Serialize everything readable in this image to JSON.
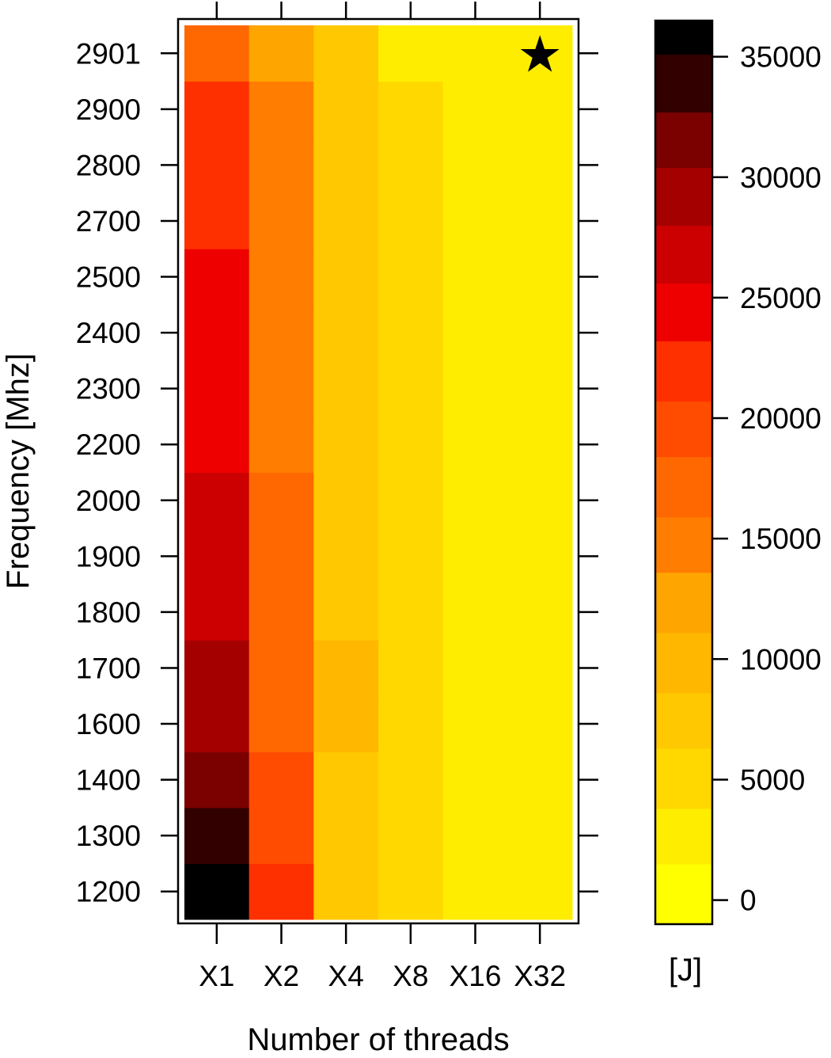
{
  "chart_data": {
    "type": "heatmap",
    "title": "",
    "xlabel": "Number of threads",
    "ylabel": "Frequency [Mhz]",
    "x_categories": [
      "X1",
      "X2",
      "X4",
      "X8",
      "X16",
      "X32"
    ],
    "y_categories": [
      "1200",
      "1300",
      "1400",
      "1600",
      "1700",
      "1800",
      "1900",
      "2000",
      "2200",
      "2300",
      "2400",
      "2500",
      "2700",
      "2800",
      "2900",
      "2901"
    ],
    "values": [
      [
        36000,
        21000,
        8500,
        5500,
        3200,
        1500
      ],
      [
        33500,
        19000,
        8500,
        5500,
        3200,
        1500
      ],
      [
        31500,
        18500,
        8500,
        5500,
        3200,
        1500
      ],
      [
        28500,
        17000,
        9000,
        5500,
        3200,
        1500
      ],
      [
        28500,
        17000,
        9000,
        5500,
        3200,
        1500
      ],
      [
        26000,
        16500,
        7500,
        5500,
        3200,
        1500
      ],
      [
        26000,
        16500,
        7500,
        5500,
        3200,
        1500
      ],
      [
        26000,
        16500,
        7500,
        5500,
        3200,
        1500
      ],
      [
        24000,
        15500,
        7500,
        5500,
        3200,
        1500
      ],
      [
        24000,
        15500,
        7500,
        5500,
        3200,
        1500
      ],
      [
        24000,
        15500,
        7500,
        5500,
        3200,
        1500
      ],
      [
        24000,
        15500,
        7500,
        5500,
        3200,
        1500
      ],
      [
        21000,
        15500,
        7500,
        5500,
        3200,
        1500
      ],
      [
        21000,
        15500,
        7500,
        5500,
        3200,
        1500
      ],
      [
        21000,
        15500,
        7500,
        5500,
        3200,
        1500
      ],
      [
        18000,
        11500,
        8500,
        3200,
        3200,
        2000
      ]
    ],
    "colorbar": {
      "label": "[J]",
      "ticks": [
        0,
        5000,
        10000,
        15000,
        20000,
        25000,
        30000,
        35000
      ],
      "range": [
        -1000,
        36500
      ],
      "bins": [
        {
          "lo": -1000,
          "hi": 1500,
          "color": "#ffff00"
        },
        {
          "lo": 1500,
          "hi": 3800,
          "color": "#ffed00"
        },
        {
          "lo": 3800,
          "hi": 6300,
          "color": "#ffd800"
        },
        {
          "lo": 6300,
          "hi": 8600,
          "color": "#ffc800"
        },
        {
          "lo": 8600,
          "hi": 11100,
          "color": "#ffb700"
        },
        {
          "lo": 11100,
          "hi": 13600,
          "color": "#ffa500"
        },
        {
          "lo": 13600,
          "hi": 15900,
          "color": "#ff7d00"
        },
        {
          "lo": 15900,
          "hi": 18400,
          "color": "#ff6700"
        },
        {
          "lo": 18400,
          "hi": 20700,
          "color": "#ff4c00"
        },
        {
          "lo": 20700,
          "hi": 23200,
          "color": "#ff3000"
        },
        {
          "lo": 23200,
          "hi": 25600,
          "color": "#ee0000"
        },
        {
          "lo": 25600,
          "hi": 28000,
          "color": "#cc0000"
        },
        {
          "lo": 28000,
          "hi": 30400,
          "color": "#a50000"
        },
        {
          "lo": 30400,
          "hi": 32700,
          "color": "#7b0000"
        },
        {
          "lo": 32700,
          "hi": 35100,
          "color": "#330000"
        },
        {
          "lo": 35100,
          "hi": 37500,
          "color": "#000000"
        }
      ]
    },
    "marker": {
      "symbol": "★",
      "x": "X32",
      "y": "2901"
    },
    "grid": false,
    "legend": "right"
  }
}
